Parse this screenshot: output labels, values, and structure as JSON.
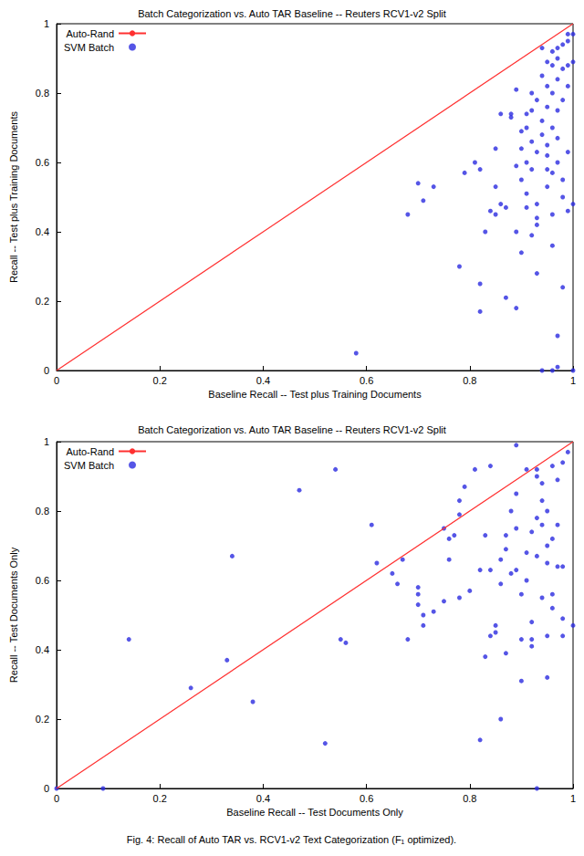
{
  "chart_data": [
    {
      "type": "scatter",
      "title": "Batch Categorization vs. Auto TAR Baseline -- Reuters RCV1-v2 Split",
      "x_label": "Baseline Recall -- Test plus Training Documents",
      "y_label": "Recall -- Test plus Training Documents",
      "xlim": [
        0,
        1
      ],
      "ylim": [
        0,
        1
      ],
      "xticks": [
        0,
        0.2,
        0.4,
        0.6,
        0.8,
        1
      ],
      "yticks": [
        0,
        0.2,
        0.4,
        0.6,
        0.8,
        1
      ],
      "legend": "top-left",
      "grid": false,
      "series": [
        {
          "name": "Auto-Rand",
          "type": "line",
          "color": "#ff3030",
          "line_style": "solid",
          "x": [
            0,
            1
          ],
          "values": [
            0,
            1
          ]
        },
        {
          "name": "SVM Batch",
          "type": "scatter",
          "color": "#2a2ae0",
          "marker": "circle",
          "x": [
            0.58,
            0.68,
            0.7,
            0.71,
            0.73,
            0.78,
            0.79,
            0.81,
            0.82,
            0.82,
            0.82,
            0.83,
            0.84,
            0.85,
            0.85,
            0.85,
            0.86,
            0.86,
            0.87,
            0.87,
            0.88,
            0.88,
            0.89,
            0.89,
            0.89,
            0.89,
            0.9,
            0.9,
            0.9,
            0.91,
            0.91,
            0.91,
            0.91,
            0.92,
            0.92,
            0.92,
            0.92,
            0.92,
            0.93,
            0.93,
            0.93,
            0.93,
            0.93,
            0.93,
            0.94,
            0.94,
            0.94,
            0.94,
            0.95,
            0.95,
            0.95,
            0.95,
            0.95,
            0.95,
            0.96,
            0.96,
            0.96,
            0.96,
            0.96,
            0.96,
            0.96,
            0.97,
            0.97,
            0.97,
            0.97,
            0.97,
            0.97,
            0.97,
            0.97,
            0.98,
            0.98,
            0.98,
            0.98,
            0.98,
            0.98,
            0.99,
            0.99,
            0.99,
            0.99,
            0.99,
            0.99,
            1.0,
            1.0,
            1.0,
            1.0,
            0.91,
            0.9,
            0.94,
            0.95,
            0.96
          ],
          "values": [
            0.05,
            0.45,
            0.54,
            0.49,
            0.53,
            0.3,
            0.57,
            0.6,
            0.58,
            0.25,
            0.17,
            0.4,
            0.46,
            0.45,
            0.64,
            0.53,
            0.48,
            0.74,
            0.47,
            0.21,
            0.74,
            0.73,
            0.81,
            0.59,
            0.18,
            0.4,
            0.64,
            0.34,
            0.55,
            0.7,
            0.51,
            0.6,
            0.47,
            0.8,
            0.75,
            0.66,
            0.58,
            0.39,
            0.63,
            0.48,
            0.44,
            0.42,
            0.28,
            0.78,
            0.85,
            0.72,
            0.68,
            0.0,
            0.89,
            0.82,
            0.76,
            0.62,
            0.53,
            0.65,
            0.92,
            0.88,
            0.8,
            0.7,
            0.57,
            0.45,
            0.0,
            0.93,
            0.9,
            0.84,
            0.75,
            0.67,
            0.6,
            0.1,
            0.01,
            0.94,
            0.87,
            0.78,
            0.55,
            0.5,
            0.24,
            0.97,
            0.95,
            0.88,
            0.82,
            0.63,
            0.46,
            0.97,
            0.89,
            0.48,
            0.0,
            0.74,
            0.69,
            0.93,
            0.58,
            0.36
          ]
        }
      ]
    },
    {
      "type": "scatter",
      "title": "Batch Categorization vs. Auto TAR Baseline -- Reuters RCV1-v2 Split",
      "x_label": "Baseline Recall -- Test Documents Only",
      "y_label": "Recall -- Test Documents Only",
      "xlim": [
        0,
        1
      ],
      "ylim": [
        0,
        1
      ],
      "xticks": [
        0,
        0.2,
        0.4,
        0.6,
        0.8,
        1
      ],
      "yticks": [
        0,
        0.2,
        0.4,
        0.6,
        0.8,
        1
      ],
      "legend": "top-left",
      "grid": false,
      "series": [
        {
          "name": "Auto-Rand",
          "type": "line",
          "color": "#ff3030",
          "line_style": "solid",
          "x": [
            0,
            1
          ],
          "values": [
            0,
            1
          ]
        },
        {
          "name": "SVM Batch",
          "type": "scatter",
          "color": "#2a2ae0",
          "marker": "circle",
          "x": [
            0.0,
            0.09,
            0.14,
            0.26,
            0.33,
            0.34,
            0.38,
            0.47,
            0.52,
            0.54,
            0.55,
            0.56,
            0.61,
            0.62,
            0.65,
            0.66,
            0.67,
            0.68,
            0.7,
            0.7,
            0.7,
            0.71,
            0.71,
            0.73,
            0.75,
            0.75,
            0.76,
            0.76,
            0.77,
            0.78,
            0.78,
            0.78,
            0.79,
            0.8,
            0.81,
            0.82,
            0.82,
            0.83,
            0.83,
            0.84,
            0.84,
            0.84,
            0.85,
            0.85,
            0.86,
            0.86,
            0.86,
            0.87,
            0.87,
            0.87,
            0.88,
            0.88,
            0.89,
            0.89,
            0.89,
            0.89,
            0.9,
            0.9,
            0.9,
            0.91,
            0.91,
            0.91,
            0.92,
            0.92,
            0.92,
            0.92,
            0.93,
            0.93,
            0.93,
            0.93,
            0.93,
            0.94,
            0.94,
            0.94,
            0.94,
            0.95,
            0.95,
            0.95,
            0.95,
            0.95,
            0.96,
            0.96,
            0.96,
            0.96,
            0.97,
            0.97,
            0.97,
            0.98,
            0.98,
            0.98,
            0.98,
            0.99,
            1.0
          ],
          "values": [
            0.0,
            0.0,
            0.43,
            0.29,
            0.37,
            0.67,
            0.25,
            0.86,
            0.13,
            0.92,
            0.43,
            0.42,
            0.76,
            0.65,
            0.62,
            0.59,
            0.66,
            0.43,
            0.58,
            0.56,
            0.53,
            0.47,
            0.5,
            0.51,
            0.75,
            0.54,
            0.72,
            0.66,
            0.73,
            0.79,
            0.55,
            0.83,
            0.87,
            0.57,
            0.92,
            0.63,
            0.14,
            0.38,
            0.73,
            0.93,
            0.63,
            0.44,
            0.47,
            0.45,
            0.66,
            0.59,
            0.2,
            0.69,
            0.39,
            0.73,
            0.62,
            0.8,
            0.99,
            0.85,
            0.75,
            0.63,
            0.43,
            0.31,
            0.56,
            0.92,
            0.68,
            0.6,
            0.48,
            0.43,
            0.41,
            0.74,
            0.9,
            0.78,
            0.67,
            0.0,
            0.92,
            0.88,
            0.83,
            0.76,
            0.55,
            0.8,
            0.7,
            0.65,
            0.44,
            0.32,
            0.93,
            0.72,
            0.56,
            0.52,
            0.89,
            0.76,
            0.64,
            0.94,
            0.64,
            0.49,
            0.44,
            0.97,
            0.47
          ]
        }
      ]
    }
  ],
  "caption": "Fig. 4: Recall of Auto TAR vs. RCV1-v2 Text Categorization (F₁ optimized)."
}
